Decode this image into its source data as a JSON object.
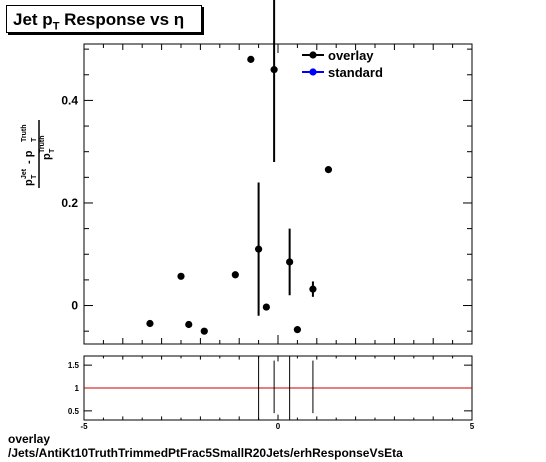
{
  "title": {
    "prefix": "Jet p",
    "sub": "T",
    "suffix": " Response vs  η"
  },
  "footer": {
    "line1": "overlay",
    "line2": "/Jets/AntiKt10TruthTrimmedPtFrac5SmallR20Jets/erhResponseVsEta"
  },
  "chart_data": [
    {
      "type": "scatter",
      "ylabel": "(p_T^Jet - p_T^Truth) / p_T^Truth",
      "xlim": [
        -5,
        5
      ],
      "ylim": [
        -0.075,
        0.51
      ],
      "yticks": [
        0,
        0.2,
        0.4
      ],
      "yticklabels": [
        "0",
        "0.2",
        "0.4"
      ],
      "legend": {
        "position": "top-right",
        "entries": [
          "overlay",
          "standard"
        ]
      },
      "legend_colors": [
        "#000000",
        "#0000ff"
      ],
      "series": [
        {
          "name": "overlay",
          "color": "#000000",
          "points": [
            {
              "x": -3.3,
              "y": -0.035,
              "err": 0.003
            },
            {
              "x": -2.5,
              "y": 0.057,
              "err": 0.004
            },
            {
              "x": -2.3,
              "y": -0.037,
              "err": 0.003
            },
            {
              "x": -1.9,
              "y": -0.05,
              "err": 0.003
            },
            {
              "x": -1.1,
              "y": 0.06,
              "err": 0.004
            },
            {
              "x": -0.7,
              "y": 0.48,
              "err": 0.004
            },
            {
              "x": -0.5,
              "y": 0.11,
              "err": 0.13
            },
            {
              "x": -0.3,
              "y": -0.003,
              "err": 0.004
            },
            {
              "x": -0.1,
              "y": 0.46,
              "err": 0.18
            },
            {
              "x": 0.3,
              "y": 0.085,
              "err": 0.065
            },
            {
              "x": 0.5,
              "y": -0.047,
              "err": 0.004
            },
            {
              "x": 0.9,
              "y": 0.032,
              "err": 0.015
            },
            {
              "x": 1.3,
              "y": 0.265,
              "err": 0.004
            }
          ]
        },
        {
          "name": "standard",
          "color": "#0000ff",
          "points": []
        }
      ]
    },
    {
      "type": "scatter",
      "xlim": [
        -5,
        5
      ],
      "ylim": [
        0.3,
        1.7
      ],
      "xticks": [
        -5,
        0,
        5
      ],
      "xticklabels": [
        "-5",
        "0",
        "5"
      ],
      "yticks": [
        0.5,
        1,
        1.5
      ],
      "yticklabels": [
        "0.5",
        "1",
        "1.5"
      ],
      "reference_line": {
        "y": 1,
        "color": "#cc0000"
      },
      "ratio_bars": [
        {
          "x": -0.5,
          "low": 0.3,
          "high": 1.7
        },
        {
          "x": -0.1,
          "low": 0.45,
          "high": 1.6
        },
        {
          "x": 0.3,
          "low": 0.3,
          "high": 1.7
        },
        {
          "x": 0.9,
          "low": 0.45,
          "high": 1.6
        }
      ]
    }
  ]
}
